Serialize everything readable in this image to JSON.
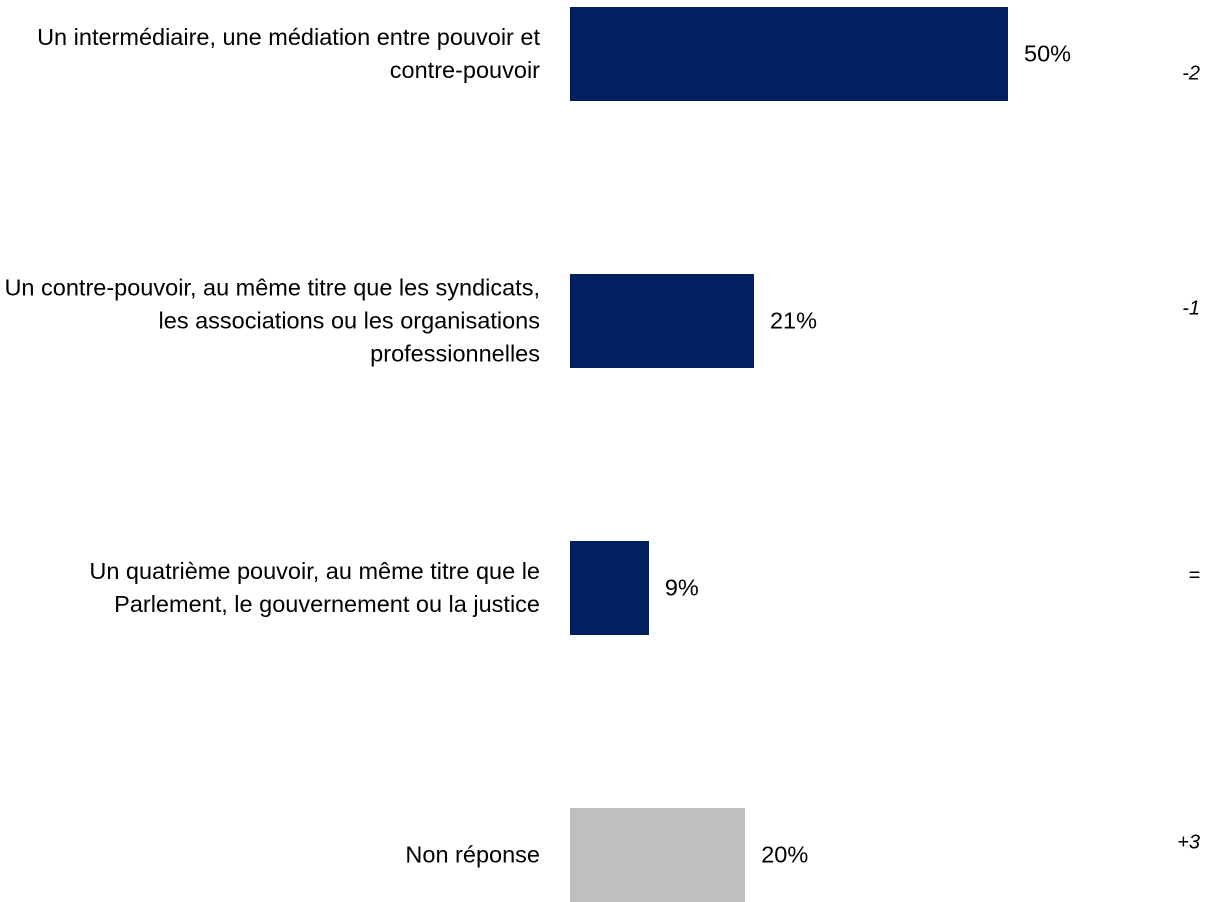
{
  "chart_data": {
    "type": "bar",
    "orientation": "horizontal",
    "categories": [
      "Un intermédiaire, une médiation entre pouvoir et contre-pouvoir",
      "Un contre-pouvoir, au même titre que les syndicats, les associations ou les organisations professionnelles",
      "Un quatrième pouvoir, au même titre que le Parlement, le gouvernement ou la justice",
      "Non réponse"
    ],
    "values": [
      50,
      21,
      9,
      20
    ],
    "value_labels": [
      "50%",
      "21%",
      "9%",
      "20%"
    ],
    "colors": [
      "#002060",
      "#002060",
      "#002060",
      "#bfbfbf"
    ],
    "changes": [
      "-2",
      "-1",
      "=",
      "+3"
    ]
  }
}
